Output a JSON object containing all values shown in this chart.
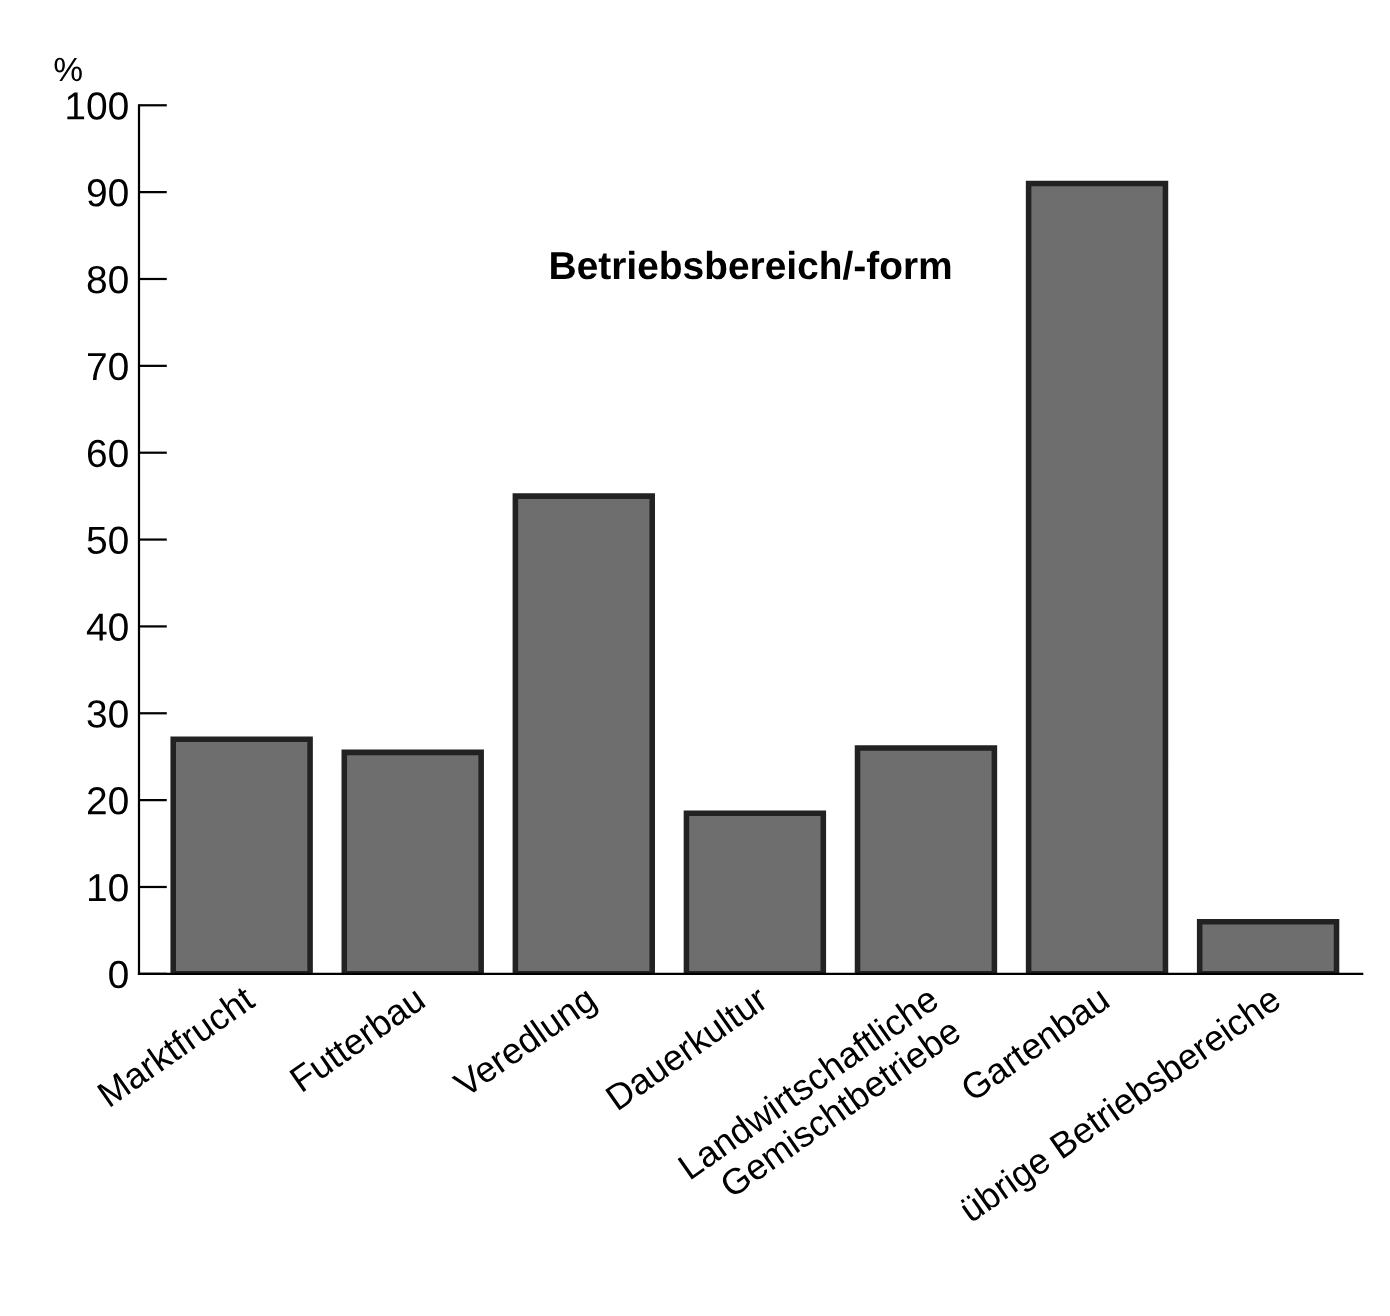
{
  "chart_data": {
    "type": "bar",
    "title": "Betriebsbereich/-form",
    "ylabel": "%",
    "categories": [
      "Marktfrucht",
      "Futterbau",
      "Veredlung",
      "Dauerkultur",
      "Landwirtschaftliche\nGemischtbetriebe",
      "Gartenbau",
      "übrige Betriebsbereiche"
    ],
    "values": [
      27,
      25.5,
      55,
      18.5,
      26,
      91,
      6
    ],
    "color": "#6e6e6e",
    "ylim": [
      0,
      100
    ],
    "yticks": [
      0,
      10,
      20,
      30,
      40,
      50,
      60,
      70,
      80,
      90,
      100
    ],
    "grid": false
  }
}
